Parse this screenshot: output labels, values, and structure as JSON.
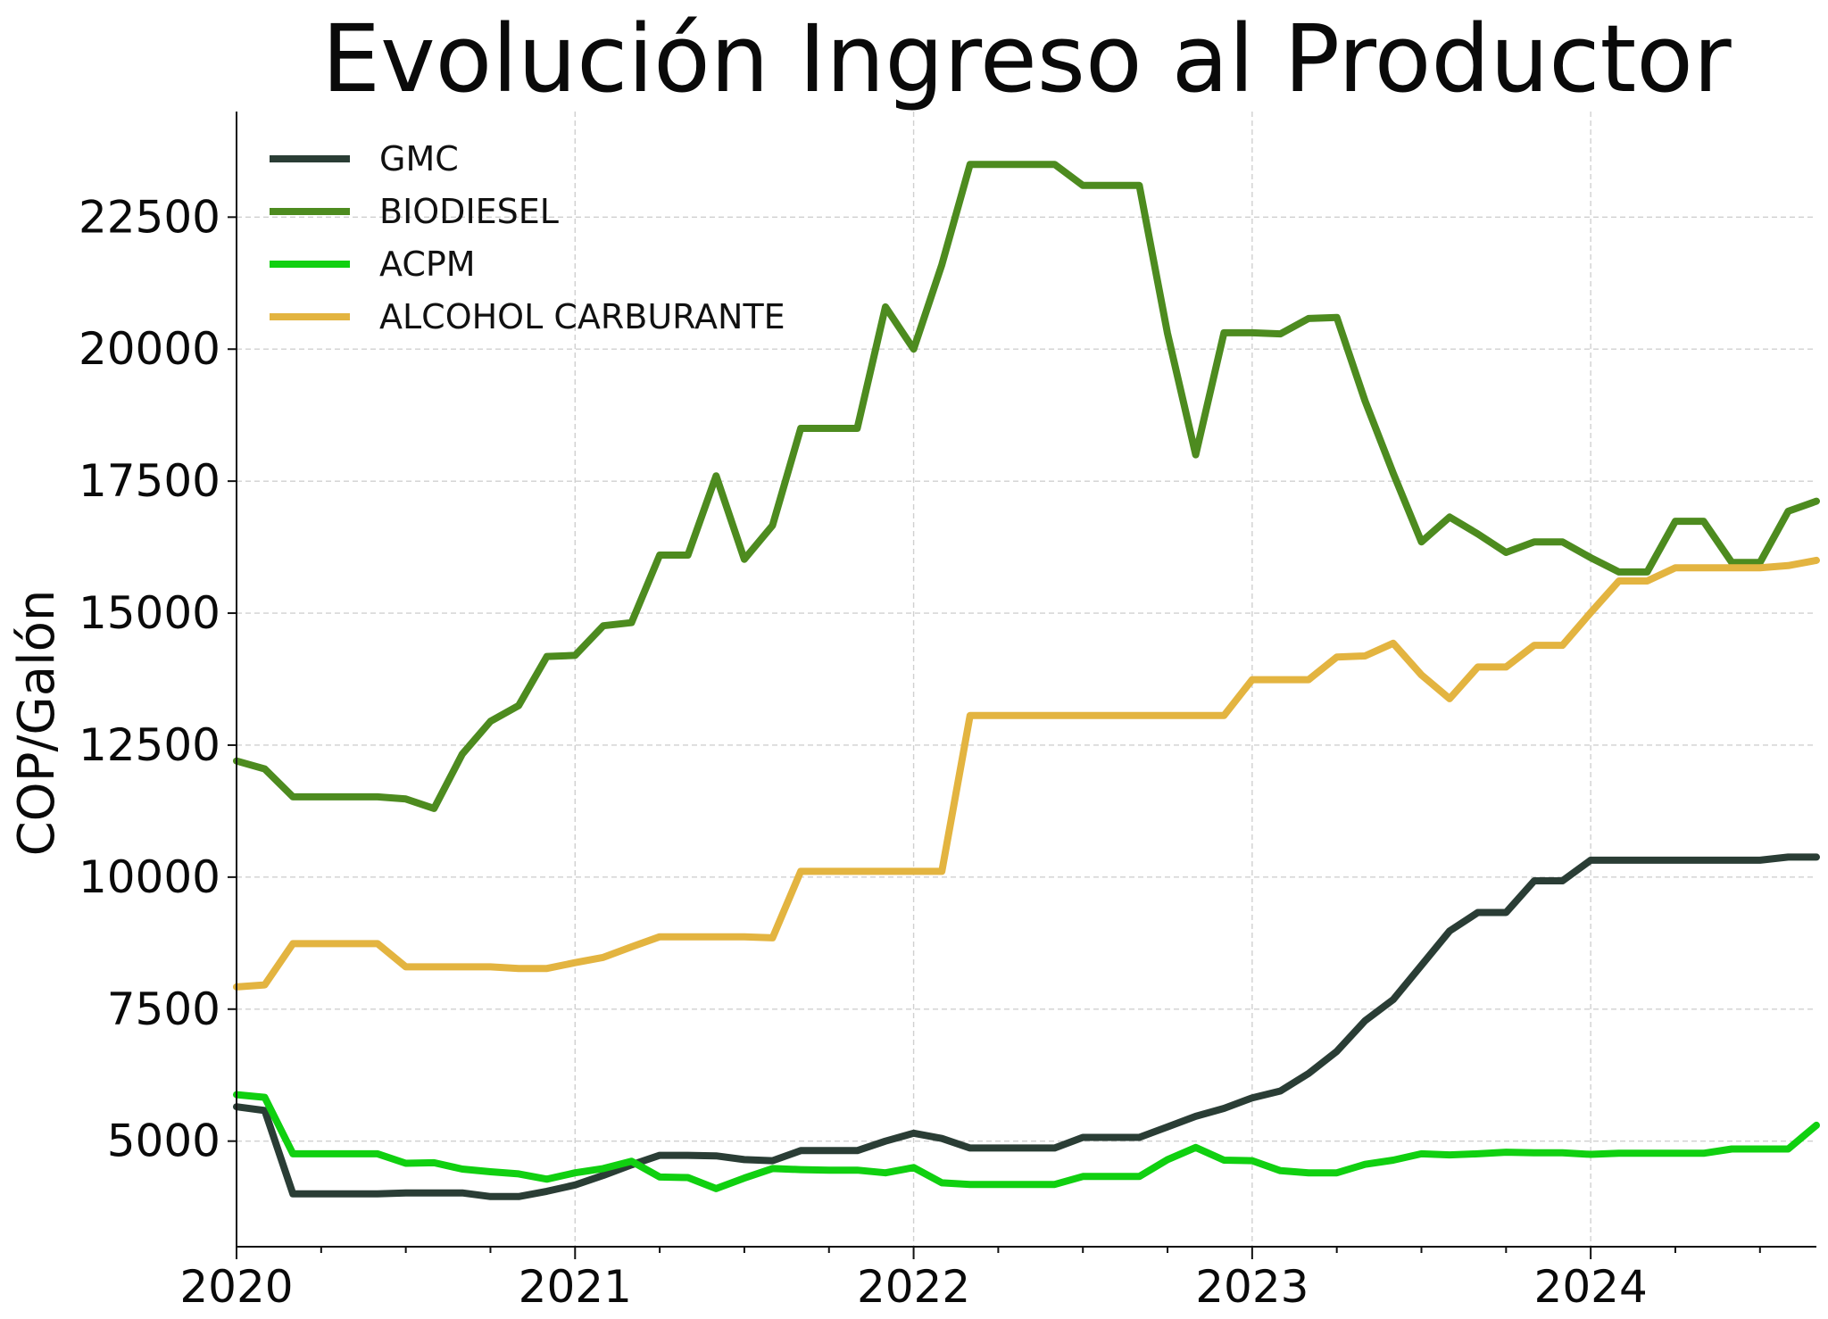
{
  "chart_data": {
    "type": "line",
    "title": "Evolución Ingreso al Productor",
    "ylabel": "COP/Galón",
    "xlabel": "",
    "ylim": [
      3000,
      24500
    ],
    "xlim": [
      "2020-01",
      "2024-09"
    ],
    "yticks": [
      5000,
      7500,
      10000,
      12500,
      15000,
      17500,
      20000,
      22500
    ],
    "xticks": [
      "2020",
      "2021",
      "2022",
      "2023",
      "2024"
    ],
    "grid": true,
    "legend_position": "top-left",
    "x": [
      "2020-01",
      "2020-02",
      "2020-03",
      "2020-04",
      "2020-05",
      "2020-06",
      "2020-07",
      "2020-08",
      "2020-09",
      "2020-10",
      "2020-11",
      "2020-12",
      "2021-01",
      "2021-02",
      "2021-03",
      "2021-04",
      "2021-05",
      "2021-06",
      "2021-07",
      "2021-08",
      "2021-09",
      "2021-10",
      "2021-11",
      "2021-12",
      "2022-01",
      "2022-02",
      "2022-03",
      "2022-04",
      "2022-05",
      "2022-06",
      "2022-07",
      "2022-08",
      "2022-09",
      "2022-10",
      "2022-11",
      "2022-12",
      "2023-01",
      "2023-02",
      "2023-03",
      "2023-04",
      "2023-05",
      "2023-06",
      "2023-07",
      "2023-08",
      "2023-09",
      "2023-10",
      "2023-11",
      "2023-12",
      "2024-01",
      "2024-02",
      "2024-03",
      "2024-04",
      "2024-05",
      "2024-06",
      "2024-07",
      "2024-08",
      "2024-09"
    ],
    "series": [
      {
        "name": "GMC",
        "color": "#2a3d35",
        "values": [
          5650,
          5580,
          4000,
          4000,
          4000,
          4000,
          4020,
          4020,
          4020,
          3950,
          3950,
          4050,
          4170,
          4350,
          4550,
          4730,
          4730,
          4720,
          4650,
          4630,
          4820,
          4820,
          4820,
          5000,
          5150,
          5050,
          4870,
          4870,
          4870,
          4870,
          5070,
          5070,
          5070,
          5270,
          5470,
          5620,
          5820,
          5950,
          6280,
          6700,
          7280,
          7680,
          8330,
          8980,
          9330,
          9330,
          9930,
          9930,
          10320,
          10320,
          10320,
          10320,
          10320,
          10320,
          10320,
          10380,
          10380
        ]
      },
      {
        "name": "BIODIESEL",
        "color": "#4d8b1f",
        "values": [
          12200,
          12050,
          11520,
          11520,
          11520,
          11520,
          11480,
          11300,
          12330,
          12950,
          13250,
          14180,
          14200,
          14760,
          14820,
          16100,
          16100,
          17600,
          16020,
          16660,
          18500,
          18500,
          18500,
          20800,
          20000,
          21600,
          23500,
          23500,
          23500,
          23500,
          23100,
          23100,
          23100,
          20300,
          18000,
          20310,
          20310,
          20290,
          20580,
          20600,
          19020,
          17650,
          16350,
          16820,
          16500,
          16150,
          16350,
          16350,
          16050,
          15780,
          15780,
          16740,
          16740,
          15960,
          15960,
          16930,
          17120
        ]
      },
      {
        "name": "ACPM",
        "color": "#10d010",
        "values": [
          5880,
          5830,
          4760,
          4760,
          4760,
          4760,
          4580,
          4590,
          4470,
          4420,
          4380,
          4280,
          4400,
          4480,
          4620,
          4320,
          4310,
          4100,
          4300,
          4480,
          4460,
          4450,
          4450,
          4400,
          4500,
          4210,
          4180,
          4180,
          4180,
          4180,
          4330,
          4330,
          4330,
          4650,
          4880,
          4640,
          4630,
          4440,
          4400,
          4400,
          4560,
          4640,
          4760,
          4740,
          4760,
          4790,
          4780,
          4780,
          4750,
          4770,
          4770,
          4770,
          4770,
          4850,
          4850,
          4850,
          5300
        ]
      },
      {
        "name": "ALCOHOL CARBURANTE",
        "color": "#e3b440",
        "values": [
          7920,
          7960,
          8740,
          8740,
          8740,
          8740,
          8300,
          8300,
          8300,
          8300,
          8270,
          8270,
          8380,
          8480,
          8680,
          8870,
          8870,
          8870,
          8870,
          8850,
          10110,
          10110,
          10110,
          10110,
          10110,
          10110,
          13060,
          13060,
          13060,
          13060,
          13060,
          13060,
          13060,
          13060,
          13060,
          13060,
          13740,
          13740,
          13740,
          14170,
          14190,
          14430,
          13830,
          13380,
          13980,
          13980,
          14390,
          14390,
          15010,
          15610,
          15610,
          15860,
          15860,
          15860,
          15860,
          15900,
          16000
        ]
      }
    ]
  }
}
